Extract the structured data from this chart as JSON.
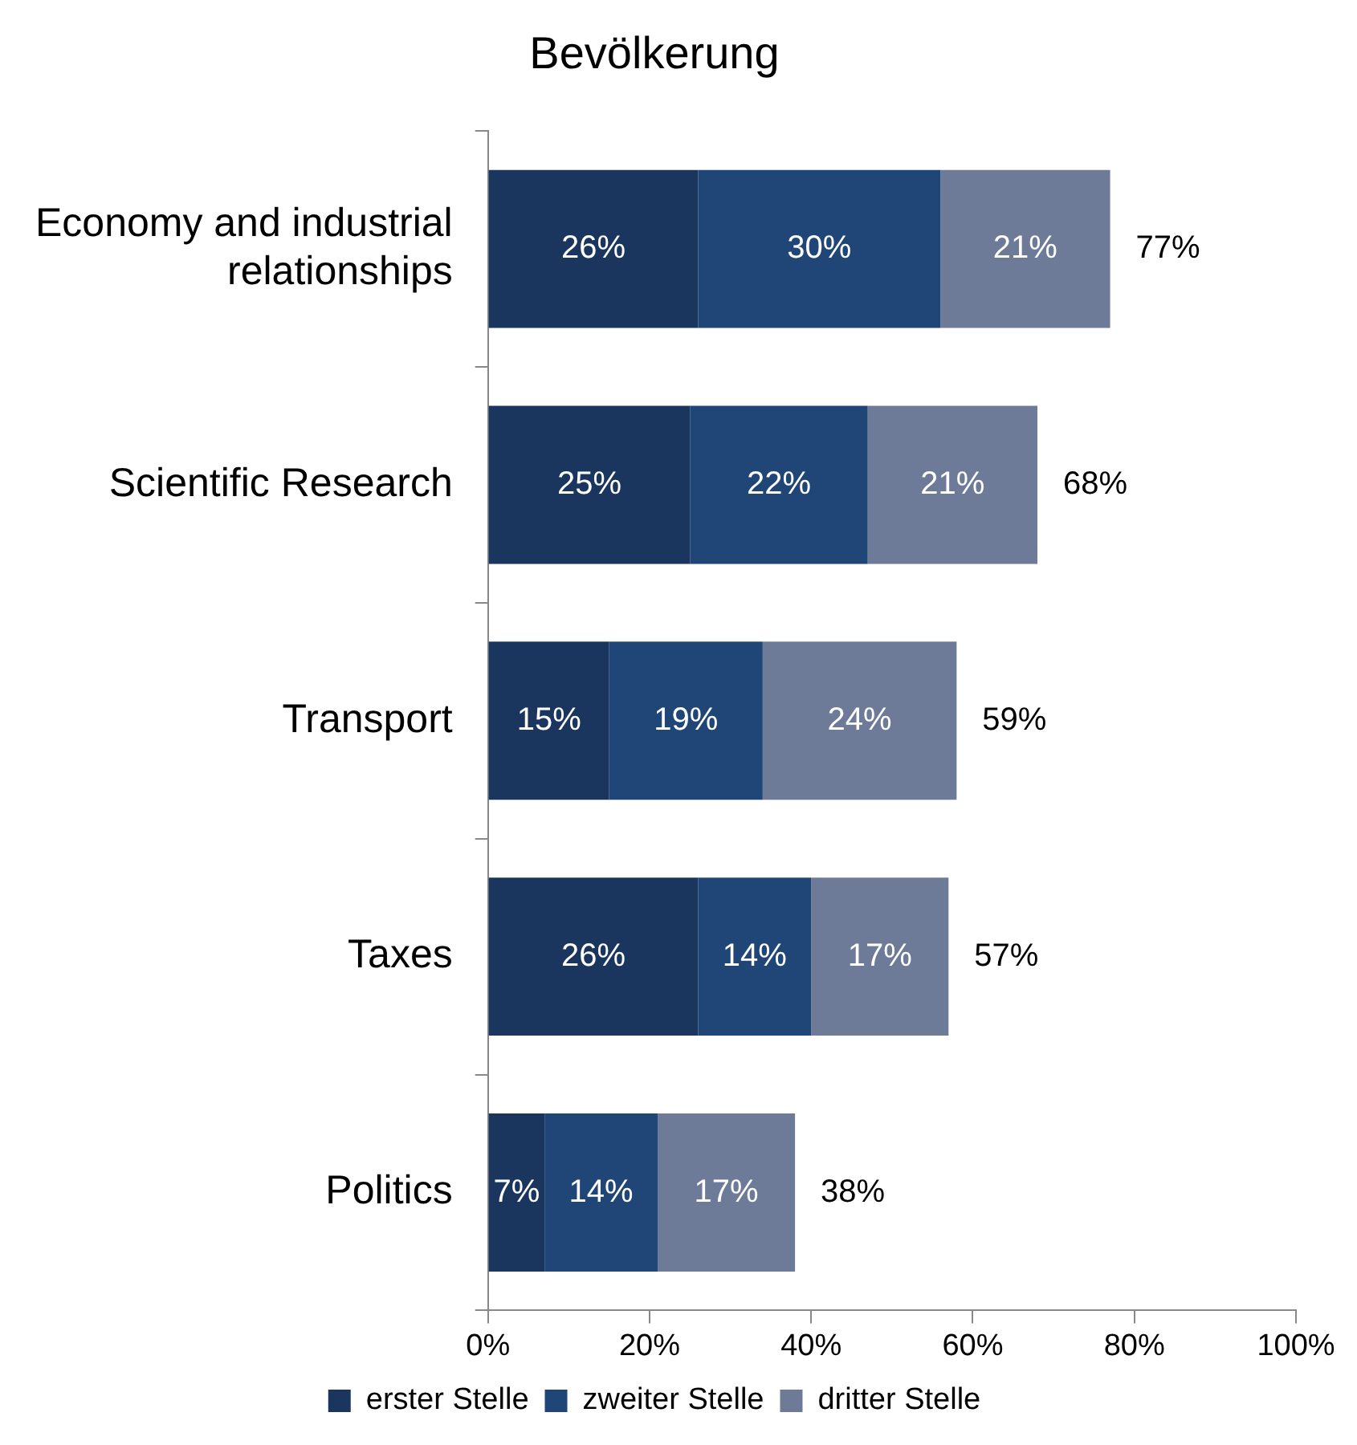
{
  "chart_data": {
    "type": "bar",
    "orientation": "horizontal",
    "stacked": true,
    "title": "Bevölkerung",
    "categories": [
      "Economy and industrial relationships",
      "Scientific Research",
      "Transport",
      "Taxes",
      "Politics"
    ],
    "series": [
      {
        "name": "erster Stelle",
        "color": "#1a365f",
        "values": [
          26,
          25,
          15,
          26,
          7
        ],
        "value_labels": [
          "26%",
          "25%",
          "15%",
          "26%",
          "7%"
        ]
      },
      {
        "name": "zweiter Stelle",
        "color": "#1f4677",
        "values": [
          30,
          22,
          19,
          14,
          14
        ],
        "value_labels": [
          "30%",
          "22%",
          "19%",
          "14%",
          "14%"
        ]
      },
      {
        "name": "dritter Stelle",
        "color": "#6d7b98",
        "values": [
          21,
          21,
          24,
          17,
          17
        ],
        "value_labels": [
          "21%",
          "21%",
          "24%",
          "17%",
          "17%"
        ]
      }
    ],
    "totals": [
      "77%",
      "68%",
      "59%",
      "57%",
      "38%"
    ],
    "xlim": [
      0,
      100
    ],
    "xticks": [
      {
        "value": 0,
        "label": "0%"
      },
      {
        "value": 20,
        "label": "20%"
      },
      {
        "value": 40,
        "label": "40%"
      },
      {
        "value": 60,
        "label": "60%"
      },
      {
        "value": 80,
        "label": "80%"
      },
      {
        "value": 100,
        "label": "100%"
      }
    ],
    "grid": false,
    "legend": "bottom"
  }
}
